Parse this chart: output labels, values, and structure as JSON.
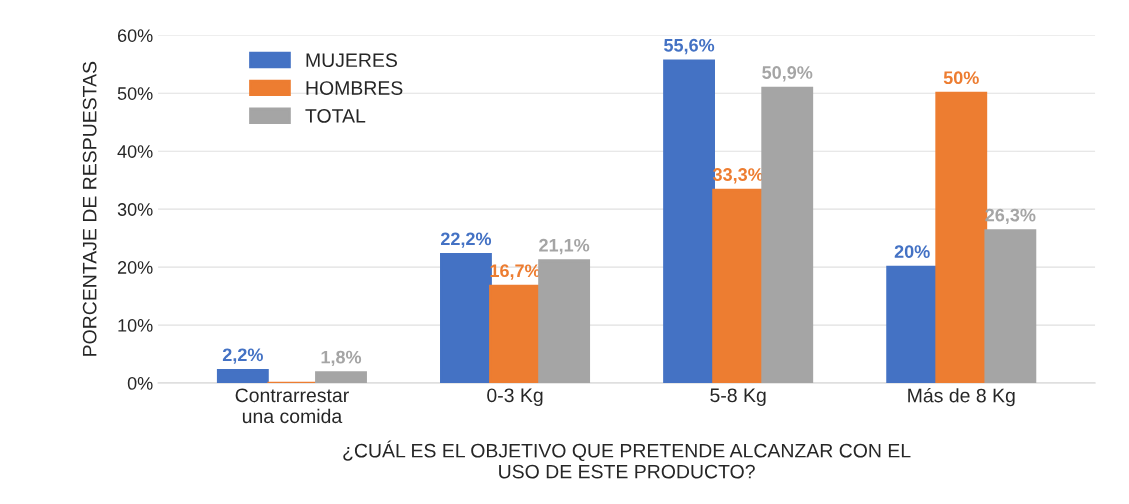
{
  "chart_data": {
    "type": "bar",
    "xlabel": "¿CUÁL ES EL OBJETIVO QUE PRETENDE ALCANZAR CON EL\nUSO DE ESTE PRODUCTO?",
    "ylabel": "PORCENTAJE DE RESPUESTAS",
    "categories": [
      "Contrarrestar\nuna comida",
      "0-3 Kg",
      "5-8 Kg",
      "Más de 8 Kg"
    ],
    "series": [
      {
        "name": "MUJERES",
        "color": "#4472c4",
        "values": [
          2.2,
          22.2,
          55.6,
          20
        ],
        "value_labels": [
          "2,2%",
          "22,2%",
          "55,6%",
          "20%"
        ]
      },
      {
        "name": "HOMBRES",
        "color": "#ed7d31",
        "values": [
          0,
          16.7,
          33.3,
          50
        ],
        "value_labels": [
          null,
          "16,7%",
          "33,3%",
          "50%"
        ]
      },
      {
        "name": "TOTAL",
        "color": "#a5a5a5",
        "values": [
          1.8,
          21.1,
          50.9,
          26.3
        ],
        "value_labels": [
          "1,8%",
          "21,1%",
          "50,9%",
          "26,3%"
        ]
      }
    ],
    "ylim": [
      0,
      60
    ],
    "yticks": [
      {
        "value": 0,
        "label": "0%"
      },
      {
        "value": 10,
        "label": "10%"
      },
      {
        "value": 20,
        "label": "20%"
      },
      {
        "value": 30,
        "label": "30%"
      },
      {
        "value": 40,
        "label": "40%"
      },
      {
        "value": 50,
        "label": "50%"
      },
      {
        "value": 60,
        "label": "60%"
      }
    ],
    "grid": "y",
    "legend": "top left"
  }
}
